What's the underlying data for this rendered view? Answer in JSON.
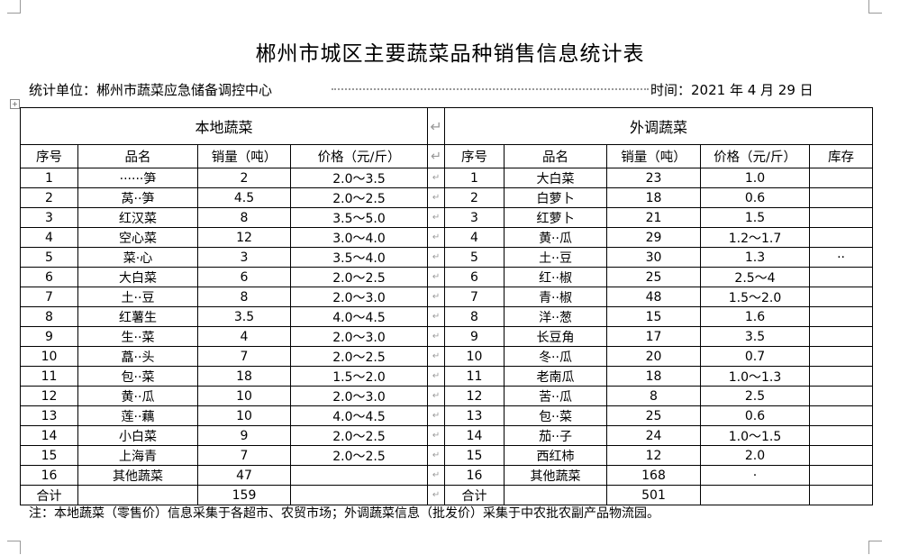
{
  "title": "郴州市城区主要蔬菜品种销售信息统计表",
  "unit_label": "统计单位：郴州市蔬菜应急储备调控中心",
  "date_label": "时间：2021 年 4 月 29 日",
  "local": {
    "heading": "本地蔬菜",
    "columns": [
      "序号",
      "品名",
      "销量（吨）",
      "价格（元/斤）"
    ],
    "rows": [
      [
        "1",
        "······笋",
        "2",
        "2.0～3.5"
      ],
      [
        "2",
        "莴··笋",
        "4.5",
        "2.0～2.5"
      ],
      [
        "3",
        "红汉菜",
        "8",
        "3.5～5.0"
      ],
      [
        "4",
        "空心菜",
        "12",
        "3.0～4.0"
      ],
      [
        "5",
        "菜·心",
        "3",
        "3.5～4.0"
      ],
      [
        "6",
        "大白菜",
        "6",
        "2.0～2.5"
      ],
      [
        "7",
        "土··豆",
        "8",
        "2.0～3.0"
      ],
      [
        "8",
        "红薯生",
        "3.5",
        "4.0～4.5"
      ],
      [
        "9",
        "生··菜",
        "4",
        "2.0～3.0"
      ],
      [
        "10",
        "藠··头",
        "7",
        "2.0～2.5"
      ],
      [
        "11",
        "包··菜",
        "18",
        "1.5～2.0"
      ],
      [
        "12",
        "黄··瓜",
        "10",
        "2.0～3.0"
      ],
      [
        "13",
        "莲··藕",
        "10",
        "4.0～4.5"
      ],
      [
        "14",
        "小白菜",
        "9",
        "2.0～2.5"
      ],
      [
        "15",
        "上海青",
        "7",
        "2.0～2.5"
      ],
      [
        "16",
        "其他蔬菜",
        "47",
        ""
      ]
    ],
    "total": [
      "合计",
      "",
      "159",
      ""
    ]
  },
  "imported": {
    "heading": "外调蔬菜",
    "columns": [
      "序号",
      "品名",
      "销量（吨）",
      "价格（元/斤）",
      "库存"
    ],
    "rows": [
      [
        "1",
        "大白菜",
        "23",
        "1.0",
        ""
      ],
      [
        "2",
        "白萝卜",
        "18",
        "0.6",
        ""
      ],
      [
        "3",
        "红萝卜",
        "21",
        "1.5",
        ""
      ],
      [
        "4",
        "黄··瓜",
        "29",
        "1.2～1.7",
        ""
      ],
      [
        "5",
        "土··豆",
        "30",
        "1.3",
        "··"
      ],
      [
        "6",
        "红··椒",
        "25",
        "2.5～4",
        ""
      ],
      [
        "7",
        "青··椒",
        "48",
        "1.5～2.0",
        ""
      ],
      [
        "8",
        "洋··葱",
        "15",
        "1.6",
        ""
      ],
      [
        "9",
        "长豆角",
        "17",
        "3.5",
        ""
      ],
      [
        "10",
        "冬··瓜",
        "20",
        "0.7",
        ""
      ],
      [
        "11",
        "老南瓜",
        "18",
        "1.0～1.3",
        ""
      ],
      [
        "12",
        "苦··瓜",
        "8",
        "2.5",
        ""
      ],
      [
        "13",
        "包··菜",
        "25",
        "0.6",
        ""
      ],
      [
        "14",
        "茄··子",
        "24",
        "1.0～1.5",
        ""
      ],
      [
        "15",
        "西红柿",
        "12",
        "2.0",
        ""
      ],
      [
        "16",
        "其他蔬菜",
        "168",
        "·",
        ""
      ]
    ],
    "total": [
      "合计",
      "",
      "501",
      "",
      ""
    ]
  },
  "note": "注：本地蔬菜（零售价）信息采集于各超市、农贸市场；外调蔬菜信息（批发价）采集于中农批农副产品物流园。"
}
